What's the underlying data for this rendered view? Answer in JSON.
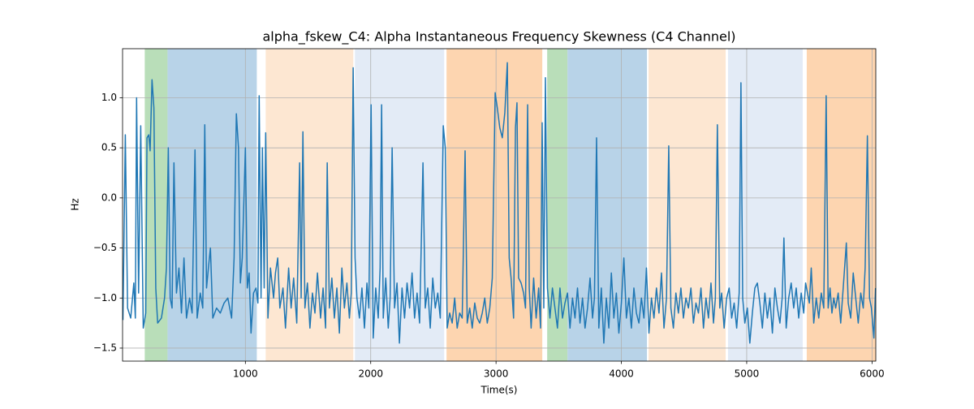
{
  "chart_data": {
    "type": "line",
    "title": "alpha_fskew_C4: Alpha Instantaneous Frequency Skewness (C4 Channel)",
    "xlabel": "Time(s)",
    "ylabel": "Hz",
    "xlim": [
      20,
      6030
    ],
    "ylim": [
      -1.63,
      1.49
    ],
    "xticks": [
      1000,
      2000,
      3000,
      4000,
      5000,
      6000
    ],
    "yticks": [
      {
        "value": -1.5,
        "label": "−1.5"
      },
      {
        "value": -1.0,
        "label": "−1.0"
      },
      {
        "value": -0.5,
        "label": "−0.5"
      },
      {
        "value": 0.0,
        "label": "0.0"
      },
      0.5,
      {
        "value": 1.0,
        "label": "1.0"
      }
    ],
    "grid": true,
    "shaded_regions": [
      {
        "start": 197,
        "end": 379,
        "color": "#b9deb9"
      },
      {
        "start": 379,
        "end": 1091,
        "color": "#b8d3e8"
      },
      {
        "start": 1162,
        "end": 1861,
        "color": "#fde7d2"
      },
      {
        "start": 1874,
        "end": 2586,
        "color": "#e3ebf6"
      },
      {
        "start": 2605,
        "end": 3369,
        "color": "#fdd5b0"
      },
      {
        "start": 3408,
        "end": 3570,
        "color": "#b9deb9"
      },
      {
        "start": 3570,
        "end": 4204,
        "color": "#b8d3e8"
      },
      {
        "start": 4217,
        "end": 4832,
        "color": "#fde7d2"
      },
      {
        "start": 4851,
        "end": 5447,
        "color": "#e3ebf6"
      },
      {
        "start": 5479,
        "end": 6030,
        "color": "#fdd5b0"
      }
    ],
    "x": [
      23,
      42,
      60,
      85,
      110,
      122,
      132,
      148,
      165,
      185,
      205,
      215,
      229,
      240,
      255,
      270,
      285,
      300,
      330,
      355,
      370,
      385,
      400,
      415,
      430,
      450,
      470,
      490,
      510,
      530,
      555,
      575,
      598,
      615,
      640,
      660,
      676,
      690,
      705,
      721,
      740,
      770,
      800,
      830,
      860,
      890,
      910,
      928,
      945,
      960,
      975,
      1000,
      1015,
      1030,
      1045,
      1065,
      1085,
      1100,
      1110,
      1125,
      1136,
      1150,
      1162,
      1180,
      1200,
      1225,
      1240,
      1258,
      1275,
      1300,
      1320,
      1345,
      1365,
      1385,
      1410,
      1433,
      1445,
      1459,
      1475,
      1495,
      1515,
      1535,
      1555,
      1575,
      1600,
      1620,
      1640,
      1653,
      1670,
      1690,
      1710,
      1730,
      1750,
      1770,
      1790,
      1810,
      1830,
      1845,
      1860,
      1875,
      1890,
      1910,
      1930,
      1950,
      1970,
      1985,
      2003,
      2020,
      2040,
      2060,
      2075,
      2087,
      2100,
      2120,
      2140,
      2155,
      2171,
      2190,
      2210,
      2229,
      2250,
      2270,
      2290,
      2310,
      2330,
      2350,
      2370,
      2390,
      2417,
      2435,
      2455,
      2475,
      2495,
      2515,
      2535,
      2555,
      2579,
      2595,
      2610,
      2630,
      2650,
      2670,
      2690,
      2710,
      2730,
      2753,
      2770,
      2790,
      2810,
      2830,
      2850,
      2870,
      2890,
      2910,
      2930,
      2950,
      2970,
      2993,
      3010,
      3030,
      3050,
      3070,
      3090,
      3105,
      3120,
      3140,
      3155,
      3167,
      3180,
      3200,
      3220,
      3235,
      3252,
      3265,
      3280,
      3300,
      3320,
      3340,
      3355,
      3368,
      3381,
      3394,
      3410,
      3430,
      3450,
      3470,
      3490,
      3510,
      3530,
      3550,
      3570,
      3590,
      3610,
      3630,
      3650,
      3670,
      3690,
      3710,
      3730,
      3750,
      3770,
      3785,
      3802,
      3820,
      3840,
      3860,
      3880,
      3900,
      3920,
      3940,
      3960,
      3980,
      4000,
      4020,
      4040,
      4060,
      4080,
      4100,
      4120,
      4140,
      4160,
      4180,
      4200,
      4220,
      4240,
      4260,
      4280,
      4300,
      4320,
      4340,
      4360,
      4378,
      4395,
      4415,
      4435,
      4455,
      4475,
      4495,
      4515,
      4535,
      4555,
      4575,
      4595,
      4615,
      4635,
      4655,
      4675,
      4695,
      4715,
      4735,
      4750,
      4766,
      4785,
      4800,
      4820,
      4840,
      4860,
      4880,
      4900,
      4920,
      4940,
      4954,
      4968,
      4985,
      5005,
      5025,
      5045,
      5065,
      5085,
      5105,
      5125,
      5145,
      5165,
      5185,
      5205,
      5225,
      5245,
      5265,
      5283,
      5297,
      5315,
      5335,
      5355,
      5375,
      5395,
      5415,
      5435,
      5455,
      5470,
      5485,
      5500,
      5515,
      5535,
      5555,
      5575,
      5595,
      5615,
      5634,
      5650,
      5665,
      5680,
      5695,
      5710,
      5730,
      5750,
      5770,
      5795,
      5810,
      5830,
      5850,
      5870,
      5890,
      5910,
      5930,
      5945,
      5963,
      5980,
      5995,
      6015,
      6028
    ],
    "series": [
      {
        "color": "#1f77b4",
        "values": [
          -1.22,
          0.63,
          -1.1,
          -1.2,
          -0.85,
          -1.2,
          1.0,
          -0.95,
          0.72,
          -1.3,
          -1.15,
          0.6,
          0.63,
          0.47,
          1.18,
          0.9,
          -0.9,
          -1.25,
          -1.2,
          -1.0,
          -0.7,
          0.5,
          -1.0,
          -1.1,
          0.35,
          -0.95,
          -0.7,
          -1.15,
          -0.6,
          -1.2,
          -1.0,
          -1.15,
          0.48,
          -1.2,
          -0.95,
          -1.1,
          0.73,
          -0.9,
          -0.7,
          -0.5,
          -1.2,
          -1.1,
          -1.15,
          -1.05,
          -1.0,
          -1.2,
          -0.6,
          0.84,
          0.5,
          -0.85,
          -0.6,
          0.5,
          -0.9,
          -0.75,
          -1.35,
          -0.95,
          -0.9,
          -1.05,
          1.02,
          -1.0,
          0.5,
          -0.9,
          0.65,
          -1.2,
          -0.7,
          -1.0,
          -0.75,
          -0.6,
          -1.1,
          -0.9,
          -1.3,
          -0.7,
          -1.1,
          -0.8,
          -1.25,
          0.35,
          -1.0,
          0.66,
          -1.1,
          -0.85,
          -1.3,
          -0.95,
          -1.15,
          -0.75,
          -1.2,
          -0.9,
          -1.3,
          0.35,
          -1.1,
          -0.8,
          -1.2,
          -0.9,
          -1.35,
          -0.7,
          -1.1,
          -0.85,
          -1.2,
          -0.95,
          1.3,
          -0.6,
          -1.0,
          -1.2,
          -0.9,
          -1.3,
          -0.85,
          -1.1,
          0.93,
          -1.4,
          -0.9,
          -1.2,
          -0.7,
          0.93,
          -1.2,
          -0.8,
          -1.3,
          -1.0,
          0.5,
          -1.1,
          -0.85,
          -1.45,
          -0.9,
          -1.2,
          -0.85,
          -1.1,
          -0.75,
          -1.2,
          -0.95,
          -1.25,
          0.35,
          -1.1,
          -0.9,
          -1.3,
          -0.8,
          -1.1,
          -0.95,
          -1.2,
          0.72,
          0.5,
          -1.3,
          -1.15,
          -1.25,
          -1.0,
          -1.3,
          -1.15,
          -1.2,
          0.47,
          -1.25,
          -1.1,
          -1.3,
          -1.05,
          -1.2,
          -1.25,
          -1.15,
          -1.0,
          -1.25,
          -1.1,
          -0.8,
          1.05,
          0.9,
          0.7,
          0.6,
          0.85,
          1.35,
          -0.6,
          -0.8,
          -1.2,
          0.7,
          0.95,
          -0.8,
          -0.85,
          -0.95,
          -1.1,
          0.93,
          -0.9,
          -1.3,
          -0.8,
          -1.2,
          -0.9,
          -1.3,
          0.75,
          -1.1,
          1.2,
          -0.9,
          -1.2,
          -0.9,
          -1.1,
          -1.3,
          -0.9,
          -1.2,
          -1.05,
          -0.95,
          -1.3,
          -1.0,
          -1.2,
          -0.9,
          -1.25,
          -1.0,
          -1.3,
          -1.1,
          -0.8,
          -1.2,
          -1.0,
          0.6,
          -1.3,
          -0.9,
          -1.45,
          -1.0,
          -1.3,
          -0.75,
          -1.2,
          -0.95,
          -1.35,
          -1.05,
          -0.6,
          -1.2,
          -1.0,
          -1.3,
          -0.9,
          -1.15,
          -1.25,
          -1.0,
          -1.2,
          -0.7,
          -1.35,
          -1.0,
          -1.2,
          -0.9,
          -1.15,
          -0.75,
          -1.3,
          -1.0,
          0.52,
          -1.1,
          -1.3,
          -0.95,
          -1.15,
          -0.9,
          -1.2,
          -1.0,
          -1.1,
          -0.9,
          -1.25,
          -1.05,
          -1.15,
          -0.9,
          -1.3,
          -1.0,
          -1.2,
          -0.85,
          -1.25,
          -1.0,
          0.73,
          -1.1,
          -0.95,
          -1.3,
          -1.0,
          -0.9,
          -1.2,
          -1.05,
          -1.3,
          -0.95,
          1.15,
          -1.0,
          -1.25,
          -1.1,
          -1.45,
          -1.15,
          -0.9,
          -0.85,
          -1.05,
          -1.3,
          -0.95,
          -1.2,
          -1.0,
          -1.35,
          -0.9,
          -1.1,
          -1.25,
          -1.0,
          -0.4,
          -1.3,
          -1.0,
          -0.85,
          -1.1,
          -0.9,
          -1.2,
          -0.95,
          -1.15,
          -0.85,
          -0.95,
          -1.05,
          -0.7,
          -1.25,
          -1.0,
          -1.2,
          -0.95,
          -1.1,
          1.02,
          -1.1,
          -0.9,
          -1.15,
          -1.0,
          -1.1,
          -0.95,
          -1.25,
          -0.9,
          -0.45,
          -1.05,
          -1.2,
          -0.75,
          -1.0,
          -1.25,
          -0.95,
          -1.1,
          -0.7,
          0.62,
          -1.0,
          -1.1,
          -1.4,
          -0.9
        ]
      }
    ]
  }
}
